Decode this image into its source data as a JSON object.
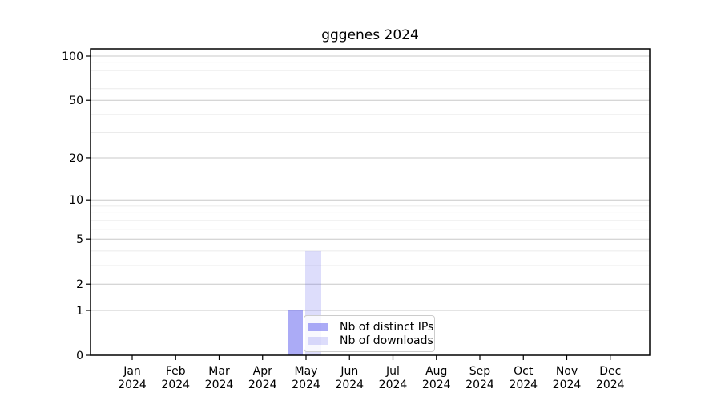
{
  "window": {
    "background": "#ffffff"
  },
  "chart_data": {
    "type": "bar",
    "title": "gggenes 2024",
    "categories": [
      "Jan",
      "Feb",
      "Mar",
      "Apr",
      "May",
      "Jun",
      "Jul",
      "Aug",
      "Sep",
      "Oct",
      "Nov",
      "Dec"
    ],
    "category_year_label": "2024",
    "series": [
      {
        "name": "Nb of distinct IPs",
        "base_color": "#6666ee",
        "alpha": 0.55,
        "values": [
          0,
          0,
          0,
          0,
          1,
          0,
          0,
          0,
          0,
          0,
          0,
          0
        ]
      },
      {
        "name": "Nb of downloads",
        "base_color": "#6666ee",
        "alpha": 0.22,
        "values": [
          0,
          0,
          0,
          0,
          4,
          0,
          0,
          0,
          0,
          0,
          0,
          0
        ]
      }
    ],
    "yscale": "log1p",
    "ylim": [
      0,
      100
    ],
    "yticks": [
      0,
      1,
      2,
      5,
      10,
      20,
      50,
      100
    ],
    "yticks_minor": [
      3,
      4,
      6,
      7,
      8,
      9,
      30,
      40,
      60,
      70,
      80,
      90
    ],
    "grid": true,
    "legend": {
      "location": "inside-lower-center"
    }
  },
  "colors": {
    "axis": "#000000",
    "tick_label": "#000000",
    "grid_major": "#c8c8c8",
    "grid_minor": "#ebebeb",
    "legend_border": "#cccccc",
    "legend_background": "rgba(255,255,255,0.8)"
  }
}
